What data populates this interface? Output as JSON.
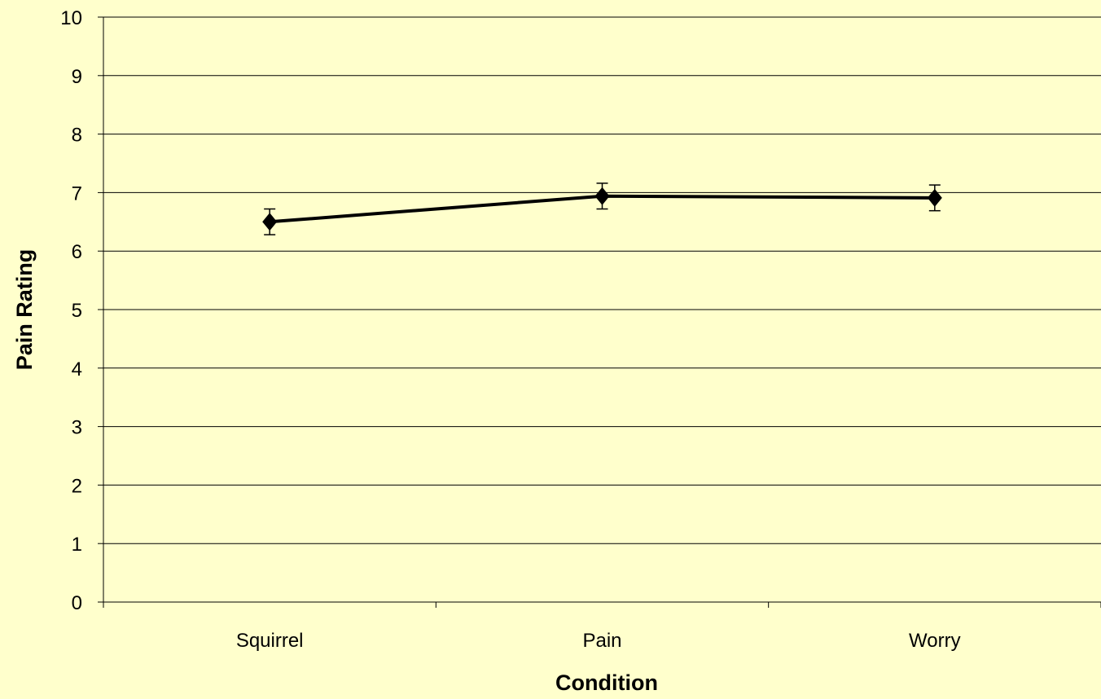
{
  "chart_data": {
    "type": "line",
    "title": "",
    "xlabel": "Condition",
    "ylabel": "Pain Rating",
    "categories": [
      "Squirrel",
      "Pain",
      "Worry"
    ],
    "series": [
      {
        "values": [
          6.5,
          6.94,
          6.91
        ],
        "error": [
          0.22,
          0.22,
          0.22
        ]
      }
    ],
    "ylim": [
      0,
      10
    ],
    "yticks": [
      "0",
      "1",
      "2",
      "3",
      "4",
      "5",
      "6",
      "7",
      "8",
      "9",
      "10"
    ],
    "grid": true,
    "legend": "none",
    "marker": "diamond"
  },
  "colors": {
    "background": "#FFFFCC",
    "line": "#000000",
    "gridline": "#000000"
  }
}
